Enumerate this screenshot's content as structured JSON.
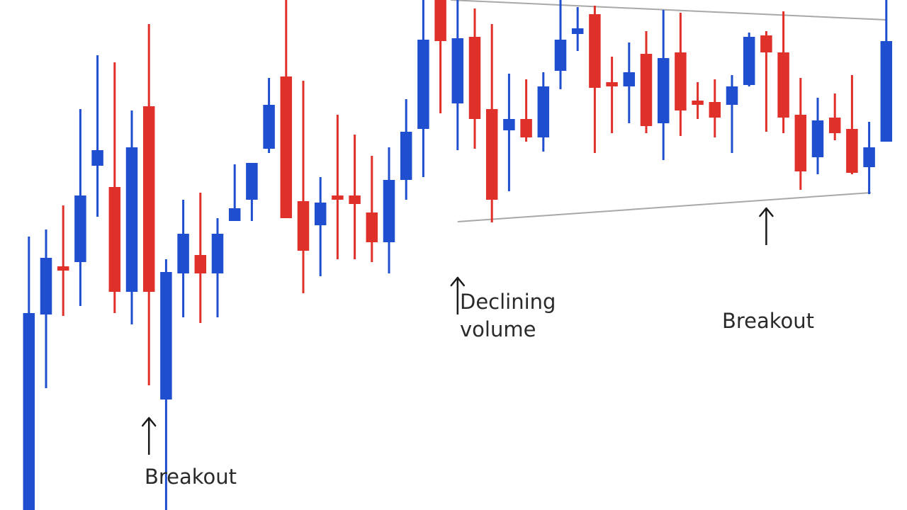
{
  "chart_data": {
    "type": "candlestick",
    "title": "",
    "xlabel": "",
    "ylabel": "",
    "axes_shown": false,
    "grid": false,
    "legend": "none",
    "ylim": [
      0,
      720
    ],
    "colors": {
      "up": "#1f4fcf",
      "down": "#e0302a",
      "trendline": "#a8a8a8",
      "arrow": "#1a1a1a"
    },
    "candles": [
      {
        "x": 1,
        "dir": "up",
        "open": 278,
        "close": 0,
        "high": 386,
        "low": 0
      },
      {
        "x": 2,
        "dir": "up",
        "open": 276,
        "close": 356,
        "high": 396,
        "low": 172
      },
      {
        "x": 3,
        "dir": "down",
        "open": 344,
        "close": 340,
        "high": 430,
        "low": 274
      },
      {
        "x": 4,
        "dir": "up",
        "open": 350,
        "close": 444,
        "high": 566,
        "low": 288
      },
      {
        "x": 5,
        "dir": "up",
        "open": 486,
        "close": 508,
        "high": 642,
        "low": 414
      },
      {
        "x": 6,
        "dir": "down",
        "open": 456,
        "close": 308,
        "high": 632,
        "low": 278
      },
      {
        "x": 7,
        "dir": "up",
        "open": 308,
        "close": 512,
        "high": 564,
        "low": 262
      },
      {
        "x": 8,
        "dir": "down",
        "open": 570,
        "close": 308,
        "high": 686,
        "low": 176
      },
      {
        "x": 9,
        "dir": "up",
        "open": 156,
        "close": 336,
        "high": 354,
        "low": 0
      },
      {
        "x": 10,
        "dir": "up",
        "open": 334,
        "close": 390,
        "high": 438,
        "low": 272
      },
      {
        "x": 11,
        "dir": "down",
        "open": 360,
        "close": 334,
        "high": 448,
        "low": 264
      },
      {
        "x": 12,
        "dir": "up",
        "open": 334,
        "close": 390,
        "high": 412,
        "low": 272
      },
      {
        "x": 13,
        "dir": "up",
        "open": 408,
        "close": 426,
        "high": 488,
        "low": 410
      },
      {
        "x": 14,
        "dir": "up",
        "open": 438,
        "close": 490,
        "high": 490,
        "low": 408
      },
      {
        "x": 15,
        "dir": "up",
        "open": 510,
        "close": 572,
        "high": 610,
        "low": 504
      },
      {
        "x": 16,
        "dir": "down",
        "open": 612,
        "close": 412,
        "high": 720,
        "low": 412
      },
      {
        "x": 17,
        "dir": "down",
        "open": 436,
        "close": 366,
        "high": 606,
        "low": 306
      },
      {
        "x": 18,
        "dir": "up",
        "open": 402,
        "close": 434,
        "high": 470,
        "low": 330
      },
      {
        "x": 19,
        "dir": "down",
        "open": 444,
        "close": 438,
        "high": 558,
        "low": 354
      },
      {
        "x": 20,
        "dir": "down",
        "open": 444,
        "close": 432,
        "high": 530,
        "low": 354
      },
      {
        "x": 21,
        "dir": "down",
        "open": 420,
        "close": 378,
        "high": 500,
        "low": 350
      },
      {
        "x": 22,
        "dir": "up",
        "open": 378,
        "close": 466,
        "high": 512,
        "low": 334
      },
      {
        "x": 23,
        "dir": "up",
        "open": 466,
        "close": 534,
        "high": 580,
        "low": 438
      },
      {
        "x": 24,
        "dir": "up",
        "open": 538,
        "close": 664,
        "high": 720,
        "low": 470
      },
      {
        "x": 25,
        "dir": "down",
        "open": 720,
        "close": 662,
        "high": 720,
        "low": 560
      },
      {
        "x": 26,
        "dir": "up",
        "open": 574,
        "close": 666,
        "high": 720,
        "low": 508
      },
      {
        "x": 27,
        "dir": "down",
        "open": 668,
        "close": 552,
        "high": 708,
        "low": 510
      },
      {
        "x": 28,
        "dir": "down",
        "open": 566,
        "close": 438,
        "high": 686,
        "low": 406
      },
      {
        "x": 29,
        "dir": "up",
        "open": 536,
        "close": 552,
        "high": 616,
        "low": 450
      },
      {
        "x": 30,
        "dir": "down",
        "open": 552,
        "close": 526,
        "high": 608,
        "low": 520
      },
      {
        "x": 31,
        "dir": "up",
        "open": 526,
        "close": 598,
        "high": 618,
        "low": 506
      },
      {
        "x": 32,
        "dir": "up",
        "open": 620,
        "close": 664,
        "high": 720,
        "low": 594
      },
      {
        "x": 33,
        "dir": "up",
        "open": 672,
        "close": 680,
        "high": 710,
        "low": 648
      },
      {
        "x": 34,
        "dir": "down",
        "open": 700,
        "close": 596,
        "high": 712,
        "low": 504
      },
      {
        "x": 35,
        "dir": "down",
        "open": 604,
        "close": 600,
        "high": 640,
        "low": 532
      },
      {
        "x": 36,
        "dir": "up",
        "open": 598,
        "close": 618,
        "high": 660,
        "low": 546
      },
      {
        "x": 37,
        "dir": "down",
        "open": 644,
        "close": 542,
        "high": 676,
        "low": 532
      },
      {
        "x": 38,
        "dir": "up",
        "open": 546,
        "close": 638,
        "high": 706,
        "low": 494
      },
      {
        "x": 39,
        "dir": "down",
        "open": 646,
        "close": 564,
        "high": 702,
        "low": 528
      },
      {
        "x": 40,
        "dir": "down",
        "open": 578,
        "close": 572,
        "high": 604,
        "low": 552
      },
      {
        "x": 41,
        "dir": "down",
        "open": 576,
        "close": 554,
        "high": 608,
        "low": 526
      },
      {
        "x": 42,
        "dir": "up",
        "open": 572,
        "close": 598,
        "high": 614,
        "low": 504
      },
      {
        "x": 43,
        "dir": "up",
        "open": 600,
        "close": 668,
        "high": 674,
        "low": 598
      },
      {
        "x": 44,
        "dir": "down",
        "open": 670,
        "close": 646,
        "high": 676,
        "low": 534
      },
      {
        "x": 45,
        "dir": "down",
        "open": 646,
        "close": 554,
        "high": 704,
        "low": 532
      },
      {
        "x": 46,
        "dir": "down",
        "open": 558,
        "close": 478,
        "high": 610,
        "low": 452
      },
      {
        "x": 47,
        "dir": "up",
        "open": 498,
        "close": 550,
        "high": 582,
        "low": 474
      },
      {
        "x": 48,
        "dir": "down",
        "open": 554,
        "close": 532,
        "high": 588,
        "low": 522
      },
      {
        "x": 49,
        "dir": "down",
        "open": 538,
        "close": 476,
        "high": 614,
        "low": 474
      },
      {
        "x": 50,
        "dir": "up",
        "open": 484,
        "close": 512,
        "high": 548,
        "low": 446
      },
      {
        "x": 51,
        "dir": "up",
        "open": 520,
        "close": 662,
        "high": 720,
        "low": 520
      }
    ],
    "trendlines": [
      {
        "x": [
          25.6,
          51
        ],
        "y": [
          720,
          692
        ]
      },
      {
        "x": [
          26,
          50.1
        ],
        "y": [
          407,
          448
        ]
      }
    ],
    "annotations": [
      {
        "x": 8,
        "y": 130,
        "lines": [
          "Breakout"
        ]
      },
      {
        "x": 26,
        "y": 328,
        "lines": [
          "Declining",
          "volume"
        ]
      },
      {
        "x": 44,
        "y": 426,
        "lines": [
          "Breakout"
        ]
      }
    ]
  }
}
